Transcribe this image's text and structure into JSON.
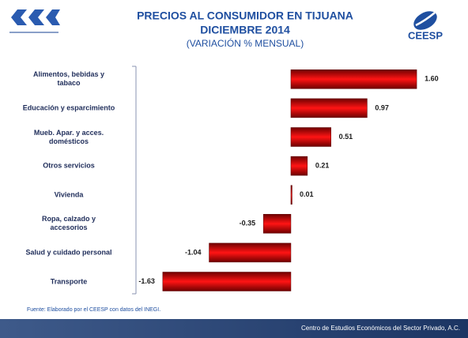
{
  "chart_data": {
    "type": "barh",
    "title": "PRECIOS AL CONSUMIDOR EN TIJUANA",
    "subtitle": "DICIEMBRE 2014",
    "subtitle2": "(VARIACIÓN % MENSUAL)",
    "categories": [
      "Alimentos, bebidas y\ntabaco",
      "Educación y esparcimiento",
      "Mueb. Apar. y acces.\ndomésticos",
      "Otros servicios",
      "Vivienda",
      "Ropa, calzado y\naccesorios",
      "Salud y cuidado personal",
      "Transporte"
    ],
    "values": [
      1.6,
      0.97,
      0.51,
      0.21,
      0.01,
      -0.35,
      -1.04,
      -1.63
    ],
    "value_labels": [
      "1.60",
      "0.97",
      "0.51",
      "0.21",
      "0.01",
      "-0.35",
      "-1.04",
      "-1.63"
    ],
    "color": "#e00000",
    "xlim": [
      -1.9,
      1.75
    ],
    "source": "Fuente: Elaborado por el CEESP con datos del INEGI.",
    "footer": "Centro de Estudios Económicos del Sector Privado, A.C.",
    "logo_right": "CEESP"
  }
}
